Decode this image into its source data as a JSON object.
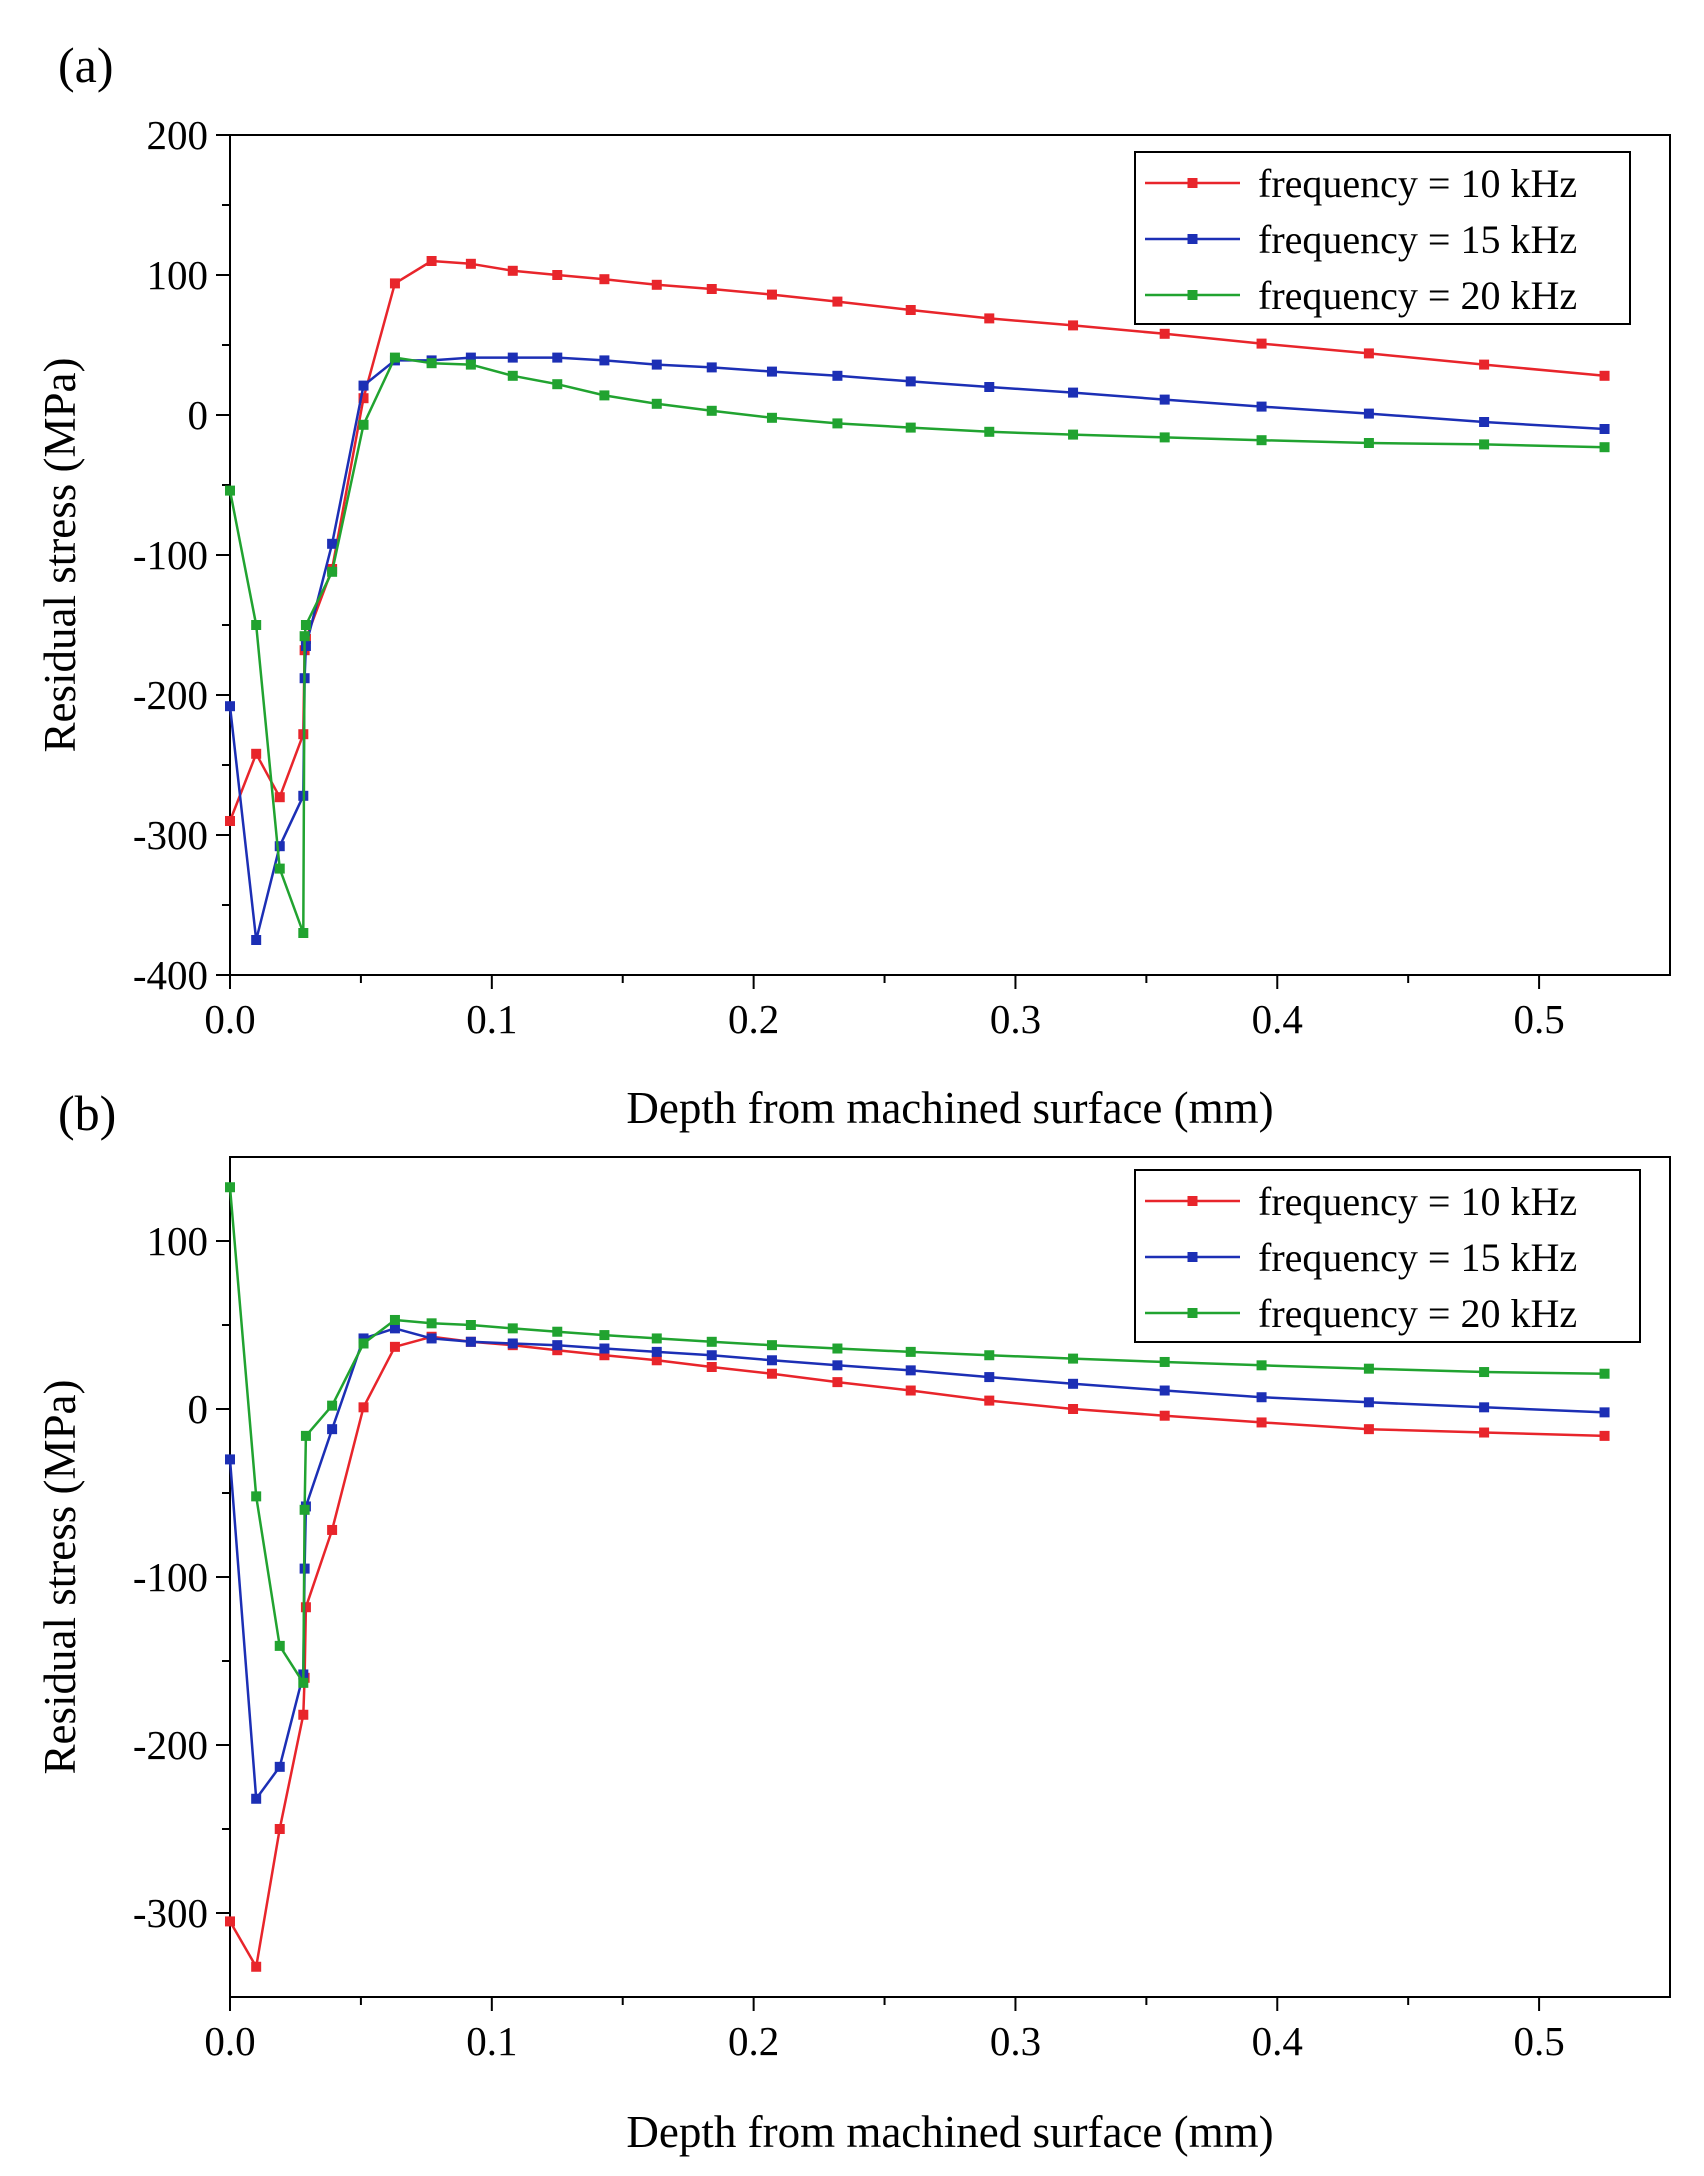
{
  "chart_data": [
    {
      "type": "line",
      "panel_label": "(a)",
      "xlabel": "Depth from machined surface (mm)",
      "ylabel": "Residual stress (MPa)",
      "xlim": [
        0,
        0.55
      ],
      "ylim": [
        -400,
        200
      ],
      "xticks": [
        0,
        0.1,
        0.2,
        0.3,
        0.4,
        0.5
      ],
      "xtick_labels": [
        "0.0",
        "0.1",
        "0.2",
        "0.3",
        "0.4",
        "0.5"
      ],
      "yticks": [
        -400,
        -300,
        -200,
        -100,
        0,
        100,
        200
      ],
      "ytick_labels": [
        "-400",
        "-300",
        "-200",
        "-100",
        "0",
        "100",
        "200"
      ],
      "grid": false,
      "legend_position": "top-right",
      "x": [
        0,
        0.01,
        0.019,
        0.028,
        0.0285,
        0.029,
        0.039,
        0.051,
        0.063,
        0.077,
        0.092,
        0.108,
        0.125,
        0.143,
        0.163,
        0.184,
        0.207,
        0.232,
        0.26,
        0.29,
        0.322,
        0.357,
        0.394,
        0.435,
        0.479,
        0.525
      ],
      "series": [
        {
          "name": "frequency = 10 kHz",
          "color": "#e8252b",
          "values": [
            -290,
            -242,
            -273,
            -228,
            -168,
            -160,
            -110,
            12,
            94,
            110,
            108,
            103,
            100,
            97,
            93,
            90,
            86,
            81,
            75,
            69,
            64,
            58,
            51,
            44,
            36,
            28
          ]
        },
        {
          "name": "frequency = 15 kHz",
          "color": "#1c2fb5",
          "values": [
            -208,
            -375,
            -308,
            -272,
            -188,
            -165,
            -92,
            21,
            39,
            39,
            41,
            41,
            41,
            39,
            36,
            34,
            31,
            28,
            24,
            20,
            16,
            11,
            6,
            1,
            -5,
            -10
          ]
        },
        {
          "name": "frequency = 20 kHz",
          "color": "#21a330",
          "values": [
            -54,
            -150,
            -324,
            -370,
            -158,
            -150,
            -112,
            -7,
            41,
            37,
            36,
            28,
            22,
            14,
            8,
            3,
            -2,
            -6,
            -9,
            -12,
            -14,
            -16,
            -18,
            -20,
            -21,
            -23
          ]
        }
      ]
    },
    {
      "type": "line",
      "panel_label": "(b)",
      "xlabel": "Depth from machined surface (mm)",
      "ylabel": "Residual stress (MPa)",
      "xlim": [
        0,
        0.55
      ],
      "ylim": [
        -350,
        150
      ],
      "xticks": [
        0,
        0.1,
        0.2,
        0.3,
        0.4,
        0.5
      ],
      "xtick_labels": [
        "0.0",
        "0.1",
        "0.2",
        "0.3",
        "0.4",
        "0.5"
      ],
      "yticks": [
        -300,
        -200,
        -100,
        0,
        100
      ],
      "ytick_labels": [
        "-300",
        "-200",
        "-100",
        "0",
        "100"
      ],
      "grid": false,
      "legend_position": "top-right",
      "x": [
        0,
        0.01,
        0.019,
        0.028,
        0.0285,
        0.029,
        0.039,
        0.051,
        0.063,
        0.077,
        0.092,
        0.108,
        0.125,
        0.143,
        0.163,
        0.184,
        0.207,
        0.232,
        0.26,
        0.29,
        0.322,
        0.357,
        0.394,
        0.435,
        0.479,
        0.525
      ],
      "series": [
        {
          "name": "frequency = 10 kHz",
          "color": "#e8252b",
          "values": [
            -305,
            -332,
            -250,
            -182,
            -160,
            -118,
            -72,
            1,
            37,
            43,
            40,
            38,
            35,
            32,
            29,
            25,
            21,
            16,
            11,
            5,
            0,
            -4,
            -8,
            -12,
            -14,
            -16
          ]
        },
        {
          "name": "frequency = 15 kHz",
          "color": "#1c2fb5",
          "values": [
            -30,
            -232,
            -213,
            -158,
            -95,
            -58,
            -12,
            42,
            48,
            42,
            40,
            39,
            38,
            36,
            34,
            32,
            29,
            26,
            23,
            19,
            15,
            11,
            7,
            4,
            1,
            -2
          ]
        },
        {
          "name": "frequency = 20 kHz",
          "color": "#21a330",
          "values": [
            132,
            -52,
            -141,
            -163,
            -60,
            -16,
            2,
            39,
            53,
            51,
            50,
            48,
            46,
            44,
            42,
            40,
            38,
            36,
            34,
            32,
            30,
            28,
            26,
            24,
            22,
            21
          ]
        }
      ]
    }
  ]
}
